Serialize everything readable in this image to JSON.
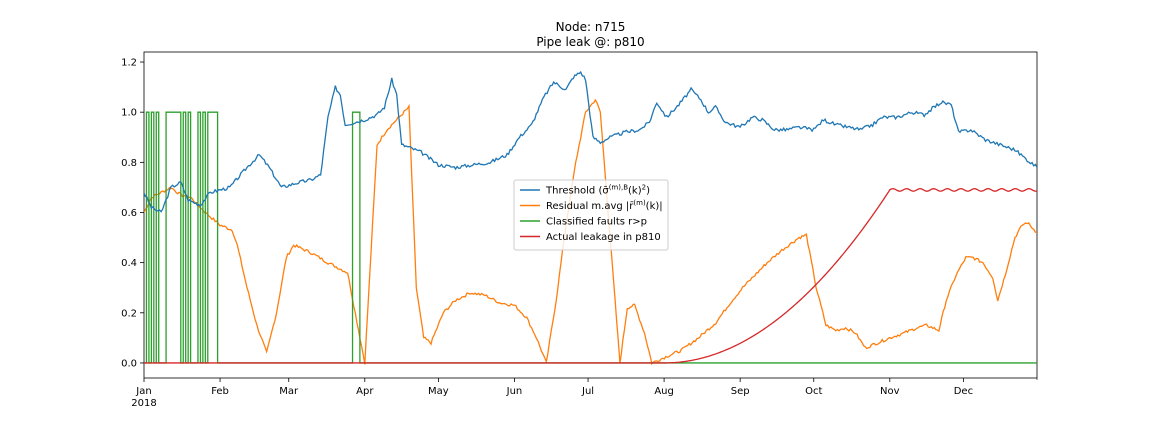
{
  "chart_data": {
    "type": "line",
    "title_lines": [
      "Node: n715",
      "Pipe leak @: p810"
    ],
    "xlabel": "",
    "ylabel": "",
    "x_ticks": [
      {
        "date": "2018-01-01",
        "label": "Jan",
        "sublabel": "2018"
      },
      {
        "date": "2018-02-01",
        "label": "Feb"
      },
      {
        "date": "2018-03-01",
        "label": "Mar"
      },
      {
        "date": "2018-04-01",
        "label": "Apr"
      },
      {
        "date": "2018-05-01",
        "label": "May"
      },
      {
        "date": "2018-06-01",
        "label": "Jun"
      },
      {
        "date": "2018-07-01",
        "label": "Jul"
      },
      {
        "date": "2018-08-01",
        "label": "Aug"
      },
      {
        "date": "2018-09-01",
        "label": "Sep"
      },
      {
        "date": "2018-10-01",
        "label": "Oct"
      },
      {
        "date": "2018-11-01",
        "label": "Nov"
      },
      {
        "date": "2018-12-01",
        "label": "Dec"
      }
    ],
    "xlim": [
      "2018-01-01",
      "2018-12-31"
    ],
    "ylim": [
      -0.06,
      1.24
    ],
    "y_ticks": [
      0.0,
      0.2,
      0.4,
      0.6,
      0.8,
      1.0,
      1.2
    ],
    "y_tick_labels": [
      "0.0",
      "0.2",
      "0.4",
      "0.6",
      "0.8",
      "1.0",
      "1.2"
    ],
    "grid": false,
    "legend_position": "center",
    "series": [
      {
        "name": "Threshold (σ̄(m),B(k)²)",
        "legend_main": "Threshold (σ̄",
        "legend_sup": "(m),B",
        "legend_tail": "(k)",
        "legend_sup2": "2",
        "legend_end": ")",
        "color": "#1f77b4",
        "points": [
          [
            "2018-01-01",
            0.68
          ],
          [
            "2018-01-04",
            0.62
          ],
          [
            "2018-01-08",
            0.6
          ],
          [
            "2018-01-12",
            0.7
          ],
          [
            "2018-01-16",
            0.72
          ],
          [
            "2018-01-19",
            0.65
          ],
          [
            "2018-01-24",
            0.63
          ],
          [
            "2018-01-28",
            0.68
          ],
          [
            "2018-02-05",
            0.7
          ],
          [
            "2018-02-12",
            0.78
          ],
          [
            "2018-02-17",
            0.83
          ],
          [
            "2018-02-21",
            0.78
          ],
          [
            "2018-02-26",
            0.7
          ],
          [
            "2018-03-05",
            0.72
          ],
          [
            "2018-03-10",
            0.73
          ],
          [
            "2018-03-14",
            0.75
          ],
          [
            "2018-03-17",
            0.98
          ],
          [
            "2018-03-20",
            1.1
          ],
          [
            "2018-03-22",
            1.07
          ],
          [
            "2018-03-24",
            0.95
          ],
          [
            "2018-04-01",
            0.97
          ],
          [
            "2018-04-06",
            0.99
          ],
          [
            "2018-04-09",
            1.02
          ],
          [
            "2018-04-12",
            1.13
          ],
          [
            "2018-04-14",
            1.07
          ],
          [
            "2018-04-16",
            0.87
          ],
          [
            "2018-04-19",
            0.86
          ],
          [
            "2018-04-24",
            0.84
          ],
          [
            "2018-05-01",
            0.79
          ],
          [
            "2018-05-08",
            0.78
          ],
          [
            "2018-05-15",
            0.79
          ],
          [
            "2018-05-22",
            0.8
          ],
          [
            "2018-05-29",
            0.83
          ],
          [
            "2018-06-03",
            0.9
          ],
          [
            "2018-06-08",
            0.95
          ],
          [
            "2018-06-13",
            1.06
          ],
          [
            "2018-06-17",
            1.12
          ],
          [
            "2018-06-22",
            1.09
          ],
          [
            "2018-06-25",
            1.14
          ],
          [
            "2018-06-28",
            1.16
          ],
          [
            "2018-06-30",
            1.13
          ],
          [
            "2018-07-03",
            0.9
          ],
          [
            "2018-07-06",
            0.88
          ],
          [
            "2018-07-10",
            0.9
          ],
          [
            "2018-07-16",
            0.92
          ],
          [
            "2018-07-22",
            0.93
          ],
          [
            "2018-07-26",
            0.96
          ],
          [
            "2018-07-29",
            1.04
          ],
          [
            "2018-08-02",
            0.98
          ],
          [
            "2018-08-07",
            1.03
          ],
          [
            "2018-08-12",
            1.09
          ],
          [
            "2018-08-16",
            1.05
          ],
          [
            "2018-08-19",
            1.0
          ],
          [
            "2018-08-22",
            1.02
          ],
          [
            "2018-08-26",
            0.96
          ],
          [
            "2018-09-01",
            0.94
          ],
          [
            "2018-09-06",
            0.98
          ],
          [
            "2018-09-10",
            0.97
          ],
          [
            "2018-09-15",
            0.93
          ],
          [
            "2018-09-20",
            0.93
          ],
          [
            "2018-09-25",
            0.94
          ],
          [
            "2018-10-01",
            0.93
          ],
          [
            "2018-10-05",
            0.97
          ],
          [
            "2018-10-10",
            0.95
          ],
          [
            "2018-10-15",
            0.94
          ],
          [
            "2018-10-20",
            0.93
          ],
          [
            "2018-10-25",
            0.95
          ],
          [
            "2018-10-29",
            0.98
          ],
          [
            "2018-11-04",
            0.98
          ],
          [
            "2018-11-10",
            1.0
          ],
          [
            "2018-11-15",
            0.99
          ],
          [
            "2018-11-19",
            1.02
          ],
          [
            "2018-11-22",
            1.04
          ],
          [
            "2018-11-26",
            1.03
          ],
          [
            "2018-11-29",
            0.92
          ],
          [
            "2018-12-04",
            0.93
          ],
          [
            "2018-12-10",
            0.89
          ],
          [
            "2018-12-16",
            0.87
          ],
          [
            "2018-12-22",
            0.85
          ],
          [
            "2018-12-27",
            0.81
          ],
          [
            "2018-12-31",
            0.78
          ]
        ]
      },
      {
        "name": "Residual m.avg |r̄(m)(k)|",
        "legend_main": "Residual m.avg |r̄",
        "legend_sup": "(m)",
        "legend_tail": "(k)|",
        "legend_sup2": "",
        "legend_end": "",
        "color": "#ff7f0e",
        "points": [
          [
            "2018-01-01",
            0.6
          ],
          [
            "2018-01-04",
            0.66
          ],
          [
            "2018-01-08",
            0.68
          ],
          [
            "2018-01-12",
            0.7
          ],
          [
            "2018-01-16",
            0.67
          ],
          [
            "2018-01-20",
            0.66
          ],
          [
            "2018-01-26",
            0.6
          ],
          [
            "2018-02-01",
            0.55
          ],
          [
            "2018-02-06",
            0.53
          ],
          [
            "2018-02-08",
            0.47
          ],
          [
            "2018-02-12",
            0.3
          ],
          [
            "2018-02-16",
            0.15
          ],
          [
            "2018-02-20",
            0.04
          ],
          [
            "2018-02-24",
            0.2
          ],
          [
            "2018-02-28",
            0.42
          ],
          [
            "2018-03-03",
            0.47
          ],
          [
            "2018-03-10",
            0.44
          ],
          [
            "2018-03-17",
            0.4
          ],
          [
            "2018-03-23",
            0.37
          ],
          [
            "2018-03-25",
            0.36
          ],
          [
            "2018-04-01",
            0.0
          ],
          [
            "2018-04-06",
            0.87
          ],
          [
            "2018-04-10",
            0.93
          ],
          [
            "2018-04-14",
            0.97
          ],
          [
            "2018-04-17",
            1.0
          ],
          [
            "2018-04-19",
            1.02
          ],
          [
            "2018-04-22",
            0.3
          ],
          [
            "2018-04-25",
            0.1
          ],
          [
            "2018-04-28",
            0.08
          ],
          [
            "2018-05-03",
            0.2
          ],
          [
            "2018-05-08",
            0.25
          ],
          [
            "2018-05-14",
            0.28
          ],
          [
            "2018-05-20",
            0.27
          ],
          [
            "2018-05-26",
            0.24
          ],
          [
            "2018-06-01",
            0.23
          ],
          [
            "2018-06-06",
            0.18
          ],
          [
            "2018-06-10",
            0.1
          ],
          [
            "2018-06-14",
            0.0
          ],
          [
            "2018-06-18",
            0.25
          ],
          [
            "2018-06-22",
            0.55
          ],
          [
            "2018-06-26",
            0.8
          ],
          [
            "2018-06-30",
            1.0
          ],
          [
            "2018-07-04",
            1.05
          ],
          [
            "2018-07-06",
            1.0
          ],
          [
            "2018-07-10",
            0.5
          ],
          [
            "2018-07-14",
            0.0
          ],
          [
            "2018-07-17",
            0.22
          ],
          [
            "2018-07-20",
            0.23
          ],
          [
            "2018-07-24",
            0.12
          ],
          [
            "2018-07-27",
            0.0
          ],
          [
            "2018-08-03",
            0.03
          ],
          [
            "2018-08-08",
            0.05
          ],
          [
            "2018-08-15",
            0.1
          ],
          [
            "2018-08-22",
            0.16
          ],
          [
            "2018-08-28",
            0.24
          ],
          [
            "2018-09-02",
            0.3
          ],
          [
            "2018-09-07",
            0.35
          ],
          [
            "2018-09-12",
            0.4
          ],
          [
            "2018-09-18",
            0.45
          ],
          [
            "2018-09-25",
            0.5
          ],
          [
            "2018-09-28",
            0.51
          ],
          [
            "2018-10-02",
            0.3
          ],
          [
            "2018-10-06",
            0.15
          ],
          [
            "2018-10-10",
            0.13
          ],
          [
            "2018-10-14",
            0.14
          ],
          [
            "2018-10-18",
            0.12
          ],
          [
            "2018-10-22",
            0.06
          ],
          [
            "2018-10-27",
            0.08
          ],
          [
            "2018-11-01",
            0.1
          ],
          [
            "2018-11-07",
            0.12
          ],
          [
            "2018-11-12",
            0.14
          ],
          [
            "2018-11-16",
            0.15
          ],
          [
            "2018-11-21",
            0.13
          ],
          [
            "2018-11-24",
            0.25
          ],
          [
            "2018-11-28",
            0.35
          ],
          [
            "2018-12-02",
            0.42
          ],
          [
            "2018-12-05",
            0.42
          ],
          [
            "2018-12-09",
            0.4
          ],
          [
            "2018-12-13",
            0.34
          ],
          [
            "2018-12-15",
            0.25
          ],
          [
            "2018-12-18",
            0.35
          ],
          [
            "2018-12-22",
            0.5
          ],
          [
            "2018-12-25",
            0.55
          ],
          [
            "2018-12-27",
            0.56
          ],
          [
            "2018-12-31",
            0.52
          ]
        ]
      },
      {
        "name": "Classified faults r>p",
        "legend_main": "Classified faults r>p",
        "legend_sup": "",
        "legend_tail": "",
        "legend_sup2": "",
        "legend_end": "",
        "color": "#2ca02c",
        "points": []
      },
      {
        "name": "Actual leakage in p810",
        "legend_main": "Actual leakage in p810",
        "legend_sup": "",
        "legend_tail": "",
        "legend_sup2": "",
        "legend_end": "",
        "color": "#d62728",
        "points": []
      }
    ]
  }
}
